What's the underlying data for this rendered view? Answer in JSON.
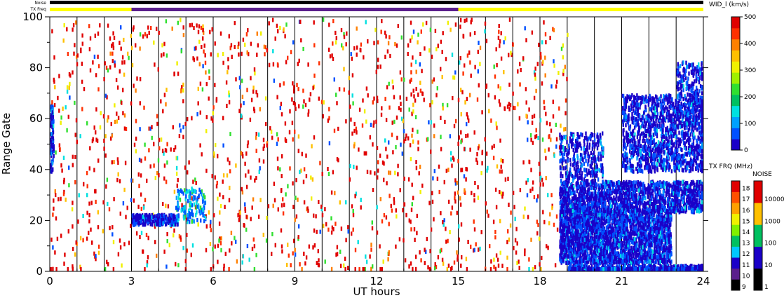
{
  "chart_data": {
    "type": "heatmap",
    "xlabel": "UT hours",
    "ylabel": "Range Gate",
    "xlim": [
      0,
      24
    ],
    "ylim": [
      0,
      100
    ],
    "x_ticks": [
      "0",
      "3",
      "6",
      "9",
      "12",
      "15",
      "18",
      "21",
      "24"
    ],
    "x_tick_values": [
      0,
      3,
      6,
      9,
      12,
      15,
      18,
      21,
      24
    ],
    "y_ticks": [
      "0",
      "20",
      "40",
      "60",
      "80",
      "100"
    ],
    "y_tick_values": [
      0,
      20,
      40,
      60,
      80,
      100
    ],
    "beam_lines_ut": [
      1,
      2,
      3,
      4,
      5,
      6,
      7,
      8,
      9,
      10,
      11,
      12,
      13,
      14,
      15,
      16,
      17,
      18,
      19,
      20,
      21,
      22,
      23
    ],
    "status_bars": {
      "noise_label": "Noise",
      "txfreq_label": "TX Freq",
      "noise_color": "#000000",
      "txfreq_segments": [
        {
          "from": 0,
          "to": 3,
          "color": "#ffff00"
        },
        {
          "from": 3,
          "to": 15,
          "color": "#5a1e8c"
        },
        {
          "from": 15,
          "to": 24,
          "color": "#ffff00"
        }
      ]
    },
    "colorbar_width": {
      "title": "WID_l (km/s)",
      "ticks": [
        "0",
        "100",
        "200",
        "300",
        "400",
        "500"
      ],
      "tick_values": [
        0,
        100,
        200,
        300,
        400,
        500
      ],
      "colors": [
        "#1a00c8",
        "#0050ff",
        "#00a0ff",
        "#00e0e0",
        "#00c060",
        "#30e030",
        "#a0f000",
        "#f0f000",
        "#ffc000",
        "#ff8000",
        "#ff3000",
        "#e00000"
      ]
    },
    "colorbar_txfreq": {
      "title": "TX FRQ (MHz)",
      "labels": [
        "9",
        "10",
        "11",
        "12",
        "13",
        "14",
        "15",
        "16",
        "17",
        "18"
      ],
      "colors": [
        "#000000",
        "#5a1e8c",
        "#1a00c8",
        "#00c8ff",
        "#00c060",
        "#80f000",
        "#f0f000",
        "#ffa000",
        "#ff5000",
        "#e00000"
      ]
    },
    "colorbar_noise": {
      "title": "NOISE",
      "labels": [
        "1",
        "10",
        "100",
        "1000",
        "10000"
      ],
      "colors": [
        "#000000",
        "#1a00c8",
        "#00c060",
        "#ffc000",
        "#e00000"
      ]
    },
    "scatter_regions": [
      {
        "name": "uniform-noise",
        "x": [
          0,
          19
        ],
        "y": [
          0,
          100
        ],
        "count": 1600,
        "palette": "all"
      },
      {
        "name": "early-event",
        "x": [
          3.0,
          4.7
        ],
        "y": [
          19,
          23
        ],
        "count": 260,
        "palette": "blue"
      },
      {
        "name": "early-rise",
        "x": [
          4.6,
          5.7
        ],
        "y": [
          20,
          33
        ],
        "count": 130,
        "palette": "cyan"
      },
      {
        "name": "night-echo-low",
        "x": [
          18.7,
          22.8
        ],
        "y": [
          4,
          25
        ],
        "count": 2600,
        "palette": "blue"
      },
      {
        "name": "night-echo-mid",
        "x": [
          18.7,
          24
        ],
        "y": [
          24,
          36
        ],
        "count": 1500,
        "palette": "blue"
      },
      {
        "name": "night-echo-upper",
        "x": [
          18.7,
          20.3
        ],
        "y": [
          36,
          55
        ],
        "count": 320,
        "palette": "blue"
      },
      {
        "name": "night-echo-top",
        "x": [
          21,
          24
        ],
        "y": [
          40,
          70
        ],
        "count": 1300,
        "palette": "blue"
      },
      {
        "name": "night-plume",
        "x": [
          23,
          24
        ],
        "y": [
          60,
          83
        ],
        "count": 230,
        "palette": "blue"
      },
      {
        "name": "bottom-band",
        "x": [
          19,
          24
        ],
        "y": [
          0,
          3
        ],
        "count": 700,
        "palette": "blue"
      },
      {
        "name": "low-gate-start",
        "x": [
          0,
          0.12
        ],
        "y": [
          40,
          66
        ],
        "count": 80,
        "palette": "blue"
      }
    ]
  }
}
